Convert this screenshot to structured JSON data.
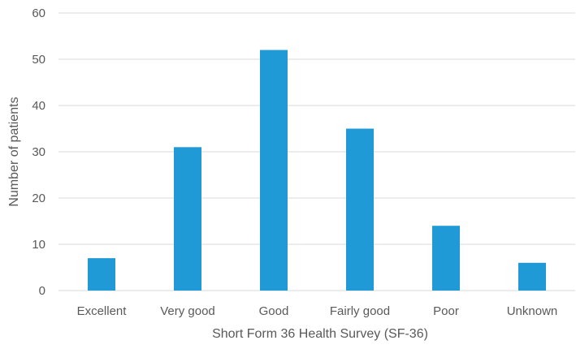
{
  "chart_data": {
    "type": "bar",
    "categories": [
      "Excellent",
      "Very good",
      "Good",
      "Fairly good",
      "Poor",
      "Unknown"
    ],
    "values": [
      7,
      31,
      52,
      35,
      14,
      6
    ],
    "xlabel": "Short Form 36 Health Survey (SF-36)",
    "ylabel": "Number of patients",
    "ylim": [
      0,
      60
    ],
    "yticks": [
      0,
      10,
      20,
      30,
      40,
      50,
      60
    ],
    "grid": true,
    "legend": "none",
    "bar_color": "#1F9AD6",
    "grid_color": "#D9D9D9"
  }
}
